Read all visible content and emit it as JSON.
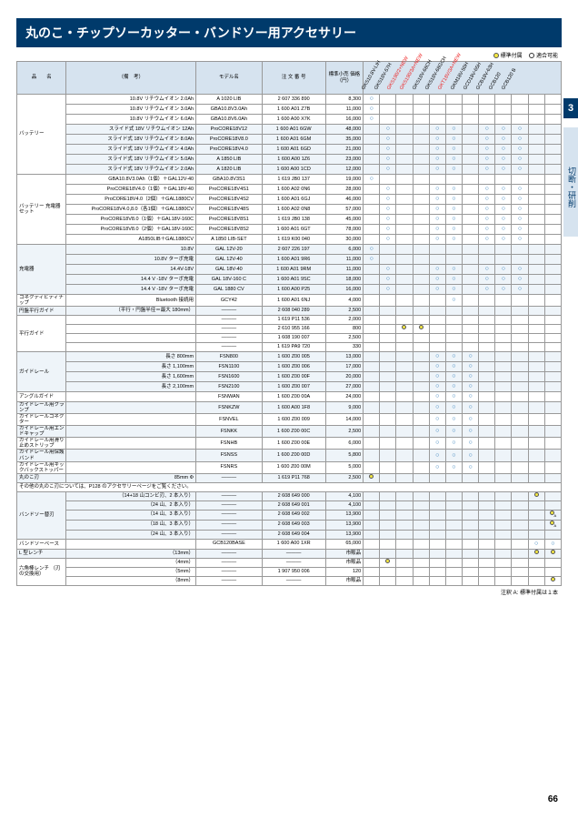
{
  "title": "丸のこ・チップソーカッター・バンドソー用アクセサリー",
  "legend": {
    "std": "標準付属",
    "compat": "適合可能"
  },
  "sideTab": "切断・研削",
  "chapterNum": "3",
  "pageNum": "66",
  "footnote": "注釈 A: 標準付属は１本",
  "headers": {
    "cat": "品　　名",
    "remark": "（備　考）",
    "model": "モデル名",
    "order": "注 文 番 号",
    "price": "標準小売\n価格（円）",
    "compatTitle": "モデル名"
  },
  "compatModels": [
    "GKS10.8V-LIH",
    "GKS18V-57H",
    "GKS190/2+NEW",
    "GKS190/3A+NEW",
    "GKS18V-68CH",
    "GKS18V-68GCH",
    "GKT18V/3A+NEW",
    "GKM18V-50H",
    "GCD18V-65H",
    "GCB18V-63H",
    "GCB120",
    "GCB120 B"
  ],
  "groups": [
    {
      "cat": "バッテリー",
      "rows": [
        {
          "remark": "10.8V リチウムイオン 2.0Ah",
          "model": "A 1020 LIB",
          "order": "2 607 336 890",
          "price": "8,300",
          "comp": [
            1,
            0,
            0,
            0,
            0,
            0,
            0,
            0,
            0,
            0,
            0,
            0
          ]
        },
        {
          "remark": "10.8V リチウムイオン 3.0Ah",
          "model": "GBA10.8V3.0Ah",
          "order": "1 600 A01 Z7B",
          "price": "11,000",
          "comp": [
            1,
            0,
            0,
            0,
            0,
            0,
            0,
            0,
            0,
            0,
            0,
            0
          ]
        },
        {
          "remark": "10.8V リチウムイオン 6.0Ah",
          "model": "GBA10.8V6.0Ah",
          "order": "1 600 A00 X7K",
          "price": "16,000",
          "comp": [
            1,
            0,
            0,
            0,
            0,
            0,
            0,
            0,
            0,
            0,
            0,
            0
          ]
        },
        {
          "remark": "スライド式 18V リチウムイオン 12Ah",
          "model": "ProCORE18V12",
          "order": "1 600 A01 6GW",
          "price": "48,000",
          "comp": [
            0,
            1,
            0,
            0,
            1,
            1,
            0,
            1,
            1,
            1,
            0,
            0
          ],
          "alt": true
        },
        {
          "remark": "スライド式 18V リチウムイオン 8.0Ah",
          "model": "ProCORE18V8.0",
          "order": "1 600 A01 6GM",
          "price": "35,000",
          "comp": [
            0,
            1,
            0,
            0,
            1,
            1,
            0,
            1,
            1,
            1,
            0,
            0
          ],
          "alt": true
        },
        {
          "remark": "スライド式 18V リチウムイオン 4.0Ah",
          "model": "ProCORE18V4.0",
          "order": "1 600 A01 6GD",
          "price": "21,000",
          "comp": [
            0,
            1,
            0,
            0,
            1,
            1,
            0,
            1,
            1,
            1,
            0,
            0
          ],
          "alt": true
        },
        {
          "remark": "スライド式 18V リチウムイオン 5.0Ah",
          "model": "A 1850 LIB",
          "order": "1 600 A00 1Z6",
          "price": "23,000",
          "comp": [
            0,
            1,
            0,
            0,
            1,
            1,
            0,
            1,
            1,
            1,
            0,
            0
          ],
          "alt": true
        },
        {
          "remark": "スライド式 18V リチウムイオン 2.0Ah",
          "model": "A 1820 LIB",
          "order": "1 600 A00 1CD",
          "price": "12,000",
          "comp": [
            0,
            1,
            0,
            0,
            1,
            1,
            0,
            1,
            1,
            1,
            0,
            0
          ],
          "alt": true
        }
      ]
    },
    {
      "cat": "バッテリー\n充電器セット",
      "new": [
        0,
        3
      ],
      "rows": [
        {
          "remark": "GBA10.8V3.0Ah（1個）＋GAL12V-40",
          "model": "GBA10.8V3S1",
          "order": "1 619 JB0 137",
          "price": "19,000",
          "comp": [
            1,
            0,
            0,
            0,
            0,
            0,
            0,
            0,
            0,
            0,
            0,
            0
          ]
        },
        {
          "remark": "ProCORE18V4.0（1個）＋GAL18V-40",
          "model": "ProCORE18V4S1",
          "order": "1 600 A02 0N6",
          "price": "28,000",
          "comp": [
            0,
            1,
            0,
            0,
            1,
            1,
            0,
            1,
            1,
            1,
            0,
            0
          ]
        },
        {
          "remark": "ProCORE18V4.0（2個）＋GAL1880CV",
          "model": "ProCORE18V4S2",
          "order": "1 600 A01 6GJ",
          "price": "46,000",
          "comp": [
            0,
            1,
            0,
            0,
            1,
            1,
            0,
            1,
            1,
            1,
            0,
            0
          ]
        },
        {
          "remark": "ProCORE18V4.0,8.0（各1個）＋GAL1880CV",
          "model": "ProCORE18V48S",
          "order": "1 600 A02 0N8",
          "price": "57,000",
          "comp": [
            0,
            1,
            0,
            0,
            1,
            1,
            0,
            1,
            1,
            1,
            0,
            0
          ]
        },
        {
          "remark": "ProCORE18V8.0（1個）＋GAL18V-160C",
          "model": "ProCORE18V8S1",
          "order": "1 619 JB0 138",
          "price": "45,000",
          "comp": [
            0,
            1,
            0,
            0,
            1,
            1,
            0,
            1,
            1,
            1,
            0,
            0
          ]
        },
        {
          "remark": "ProCORE18V8.0（2個）＋GAL18V-160C",
          "model": "ProCORE18V8S2",
          "order": "1 600 A01 6GT",
          "price": "78,000",
          "comp": [
            0,
            1,
            0,
            0,
            1,
            1,
            0,
            1,
            1,
            1,
            0,
            0
          ]
        },
        {
          "remark": "A1850LIB＋GAL1880CV",
          "model": "A 1850 LIB-SET",
          "order": "1 619 K00 040",
          "price": "30,000",
          "comp": [
            0,
            1,
            0,
            0,
            1,
            1,
            0,
            1,
            1,
            1,
            0,
            0
          ]
        }
      ]
    },
    {
      "cat": "充電器",
      "rows": [
        {
          "remark": "10.8V",
          "model": "GAL 12V-20",
          "order": "2 607 226 197",
          "price": "6,000",
          "comp": [
            1,
            0,
            0,
            0,
            0,
            0,
            0,
            0,
            0,
            0,
            0,
            0
          ],
          "alt": true
        },
        {
          "remark": "10.8V ターボ充電",
          "model": "GAL 12V-40",
          "order": "1 600 A01 9R6",
          "price": "11,000",
          "comp": [
            1,
            0,
            0,
            0,
            0,
            0,
            0,
            0,
            0,
            0,
            0,
            0
          ],
          "alt": true
        },
        {
          "remark": "14.4V-18V",
          "model": "GAL 18V-40",
          "order": "1 600 A01 9RM",
          "price": "11,000",
          "comp": [
            0,
            1,
            0,
            0,
            1,
            1,
            0,
            1,
            1,
            1,
            0,
            0
          ],
          "alt": true
        },
        {
          "remark": "14.4 V -18V ターボ充電",
          "model": "GAL 18V-160 C",
          "order": "1 600 A01 9SC",
          "price": "18,000",
          "comp": [
            0,
            1,
            0,
            0,
            1,
            1,
            0,
            1,
            1,
            1,
            0,
            0
          ],
          "alt": true
        },
        {
          "remark": "14.4 V -18V ターボ充電",
          "model": "GAL 1880 CV",
          "order": "1 600 A00 P25",
          "price": "16,000",
          "comp": [
            0,
            1,
            0,
            0,
            1,
            1,
            0,
            1,
            1,
            1,
            0,
            0
          ],
          "alt": true
        }
      ]
    },
    {
      "cat": "コネクティビティチップ",
      "rows": [
        {
          "remark": "Bluetooth 接続用",
          "model": "GCY42",
          "order": "1 600 A01 6NJ",
          "price": "4,000",
          "comp": [
            0,
            0,
            0,
            0,
            0,
            1,
            0,
            0,
            0,
            0,
            0,
            0
          ]
        }
      ]
    },
    {
      "cat": "円盤平行ガイド",
      "rows": [
        {
          "remark": "（平行・円盤半径＝最大 180mm）",
          "model": "———",
          "order": "2 608 040 289",
          "price": "2,500",
          "comp": [
            0,
            0,
            0,
            0,
            0,
            0,
            0,
            0,
            0,
            0,
            0,
            0
          ],
          "alt": true
        }
      ]
    },
    {
      "cat": "平行ガイド",
      "new": [
        2,
        3
      ],
      "rows": [
        {
          "remark": "",
          "model": "———",
          "order": "1 619 P11 536",
          "price": "2,000",
          "comp": [
            0,
            0,
            0,
            0,
            0,
            0,
            0,
            0,
            0,
            0,
            0,
            0
          ]
        },
        {
          "remark": "",
          "model": "———",
          "order": "2 610 955 166",
          "price": "800",
          "comp": [
            0,
            0,
            2,
            2,
            0,
            0,
            0,
            0,
            0,
            0,
            0,
            0
          ]
        },
        {
          "remark": "",
          "model": "———",
          "order": "1 608 190 007",
          "price": "2,500",
          "comp": [
            0,
            0,
            0,
            0,
            0,
            0,
            0,
            0,
            0,
            0,
            0,
            0
          ]
        },
        {
          "remark": "",
          "model": "———",
          "order": "1 619 PA9 720",
          "price": "330",
          "comp": [
            0,
            0,
            0,
            0,
            0,
            0,
            0,
            0,
            0,
            0,
            0,
            0
          ]
        }
      ]
    },
    {
      "cat": "ガイドレール",
      "rows": [
        {
          "remark": "長さ 800mm",
          "model": "FSN800",
          "order": "1 600 Z00 005",
          "price": "13,000",
          "comp": [
            0,
            0,
            0,
            0,
            1,
            1,
            1,
            0,
            0,
            0,
            0,
            0
          ],
          "alt": true
        },
        {
          "remark": "長さ 1,100mm",
          "model": "FSN1100",
          "order": "1 600 Z00 006",
          "price": "17,000",
          "comp": [
            0,
            0,
            0,
            0,
            1,
            1,
            1,
            0,
            0,
            0,
            0,
            0
          ],
          "alt": true
        },
        {
          "remark": "長さ 1,600mm",
          "model": "FSN1600",
          "order": "1 600 Z00 00F",
          "price": "20,000",
          "comp": [
            0,
            0,
            0,
            0,
            1,
            1,
            1,
            0,
            0,
            0,
            0,
            0
          ],
          "alt": true
        },
        {
          "remark": "長さ 2,100mm",
          "model": "FSN2100",
          "order": "1 600 Z00 007",
          "price": "27,000",
          "comp": [
            0,
            0,
            0,
            0,
            1,
            1,
            1,
            0,
            0,
            0,
            0,
            0
          ],
          "alt": true
        }
      ]
    },
    {
      "cat": "アングルガイド",
      "rows": [
        {
          "remark": "",
          "model": "FSNWAN",
          "order": "1 600 Z00 00A",
          "price": "24,000",
          "comp": [
            0,
            0,
            0,
            0,
            1,
            1,
            1,
            0,
            0,
            0,
            0,
            0
          ]
        }
      ]
    },
    {
      "cat": "ガイドレール用クランプ",
      "rows": [
        {
          "remark": "",
          "model": "FSNKZW",
          "order": "1 600 A00 1F8",
          "price": "9,000",
          "comp": [
            0,
            0,
            0,
            0,
            1,
            1,
            1,
            0,
            0,
            0,
            0,
            0
          ],
          "alt": true
        }
      ]
    },
    {
      "cat": "ガイドレールコネクター",
      "rows": [
        {
          "remark": "",
          "model": "FSNVEL",
          "order": "1 600 Z00 009",
          "price": "14,000",
          "comp": [
            0,
            0,
            0,
            0,
            1,
            1,
            1,
            0,
            0,
            0,
            0,
            0
          ]
        }
      ]
    },
    {
      "cat": "ガイドレール用エンドキャップ",
      "rows": [
        {
          "remark": "",
          "model": "FSNKK",
          "order": "1 600 Z00 00C",
          "price": "2,500",
          "comp": [
            0,
            0,
            0,
            0,
            1,
            1,
            1,
            0,
            0,
            0,
            0,
            0
          ],
          "alt": true
        }
      ]
    },
    {
      "cat": "ガイドレール用滑り止めストリップ",
      "rows": [
        {
          "remark": "",
          "model": "FSNHB",
          "order": "1 600 Z00 00E",
          "price": "6,000",
          "comp": [
            0,
            0,
            0,
            0,
            1,
            1,
            1,
            0,
            0,
            0,
            0,
            0
          ]
        }
      ]
    },
    {
      "cat": "ガイドレール用保護バンド",
      "rows": [
        {
          "remark": "",
          "model": "FSNSS",
          "order": "1 600 Z00 00D",
          "price": "5,800",
          "comp": [
            0,
            0,
            0,
            0,
            1,
            1,
            1,
            0,
            0,
            0,
            0,
            0
          ],
          "alt": true
        }
      ]
    },
    {
      "cat": "ガイドレール用キックバックストッパー",
      "rows": [
        {
          "remark": "",
          "model": "FSNRS",
          "order": "1 600 Z00 00M",
          "price": "5,000",
          "comp": [
            0,
            0,
            0,
            0,
            1,
            1,
            1,
            0,
            0,
            0,
            0,
            0
          ]
        }
      ]
    },
    {
      "cat": "丸のこ刃",
      "rows": [
        {
          "remark": "85mm Φ",
          "model": "———",
          "order": "1 619 P11 768",
          "price": "2,500",
          "comp": [
            2,
            0,
            0,
            0,
            0,
            0,
            0,
            0,
            0,
            0,
            0,
            0
          ],
          "alt": true
        }
      ]
    },
    {
      "cat": "その他の丸のこ刃については、P128 のアクセサリーページをご覧ください。",
      "span": true,
      "rows": []
    },
    {
      "cat": "バンドソー替刃",
      "rows": [
        {
          "remark": "（14+18 山コンビ刃、2 本入り）",
          "model": "———",
          "order": "2 608 649 000",
          "price": "4,100",
          "comp": [
            0,
            0,
            0,
            0,
            0,
            0,
            0,
            0,
            0,
            0,
            2,
            0
          ],
          "alt": true
        },
        {
          "remark": "（24 山、2 本入り）",
          "model": "———",
          "order": "2 608 649 001",
          "price": "4,100",
          "comp": [
            0,
            0,
            0,
            0,
            0,
            0,
            0,
            0,
            0,
            0,
            0,
            0
          ],
          "alt": true
        },
        {
          "remark": "（14 山、3 本入り）",
          "model": "———",
          "order": "2 608 649 002",
          "price": "13,900",
          "comp": [
            0,
            0,
            0,
            0,
            0,
            0,
            0,
            0,
            0,
            0,
            0,
            3
          ],
          "alt": true
        },
        {
          "remark": "（18 山、3 本入り）",
          "model": "———",
          "order": "2 608 649 003",
          "price": "13,900",
          "comp": [
            0,
            0,
            0,
            0,
            0,
            0,
            0,
            0,
            0,
            0,
            0,
            3
          ],
          "alt": true
        },
        {
          "remark": "（24 山、3 本入り）",
          "model": "———",
          "order": "2 608 649 004",
          "price": "13,900",
          "comp": [
            0,
            0,
            0,
            0,
            0,
            0,
            0,
            0,
            0,
            0,
            0,
            0
          ],
          "alt": true
        }
      ]
    },
    {
      "cat": "バンドソーベース",
      "rows": [
        {
          "remark": "",
          "model": "GCB120BASE",
          "order": "1 600 A00 1XR",
          "price": "65,000",
          "comp": [
            0,
            0,
            0,
            0,
            0,
            0,
            0,
            0,
            0,
            0,
            1,
            1
          ]
        }
      ]
    },
    {
      "cat": "L 型レンチ",
      "rows": [
        {
          "remark": "（13mm）",
          "model": "———",
          "order": "———",
          "price": "市販品",
          "comp": [
            0,
            0,
            0,
            0,
            0,
            0,
            0,
            0,
            0,
            0,
            2,
            2
          ],
          "alt": true
        }
      ]
    },
    {
      "cat": "六角棒レンチ\n（刃の交換用）",
      "rows": [
        {
          "remark": "（4mm）",
          "model": "———",
          "order": "———",
          "price": "市販品",
          "comp": [
            0,
            2,
            0,
            0,
            0,
            0,
            0,
            0,
            0,
            0,
            0,
            0
          ]
        },
        {
          "remark": "（5mm）",
          "model": "———",
          "order": "1 907 950 006",
          "price": "120",
          "comp": [
            0,
            0,
            0,
            0,
            0,
            0,
            0,
            0,
            0,
            0,
            0,
            0
          ]
        },
        {
          "remark": "（8mm）",
          "model": "———",
          "order": "———",
          "price": "市販品",
          "comp": [
            0,
            0,
            0,
            0,
            0,
            0,
            0,
            0,
            0,
            0,
            0,
            2
          ]
        }
      ]
    }
  ]
}
